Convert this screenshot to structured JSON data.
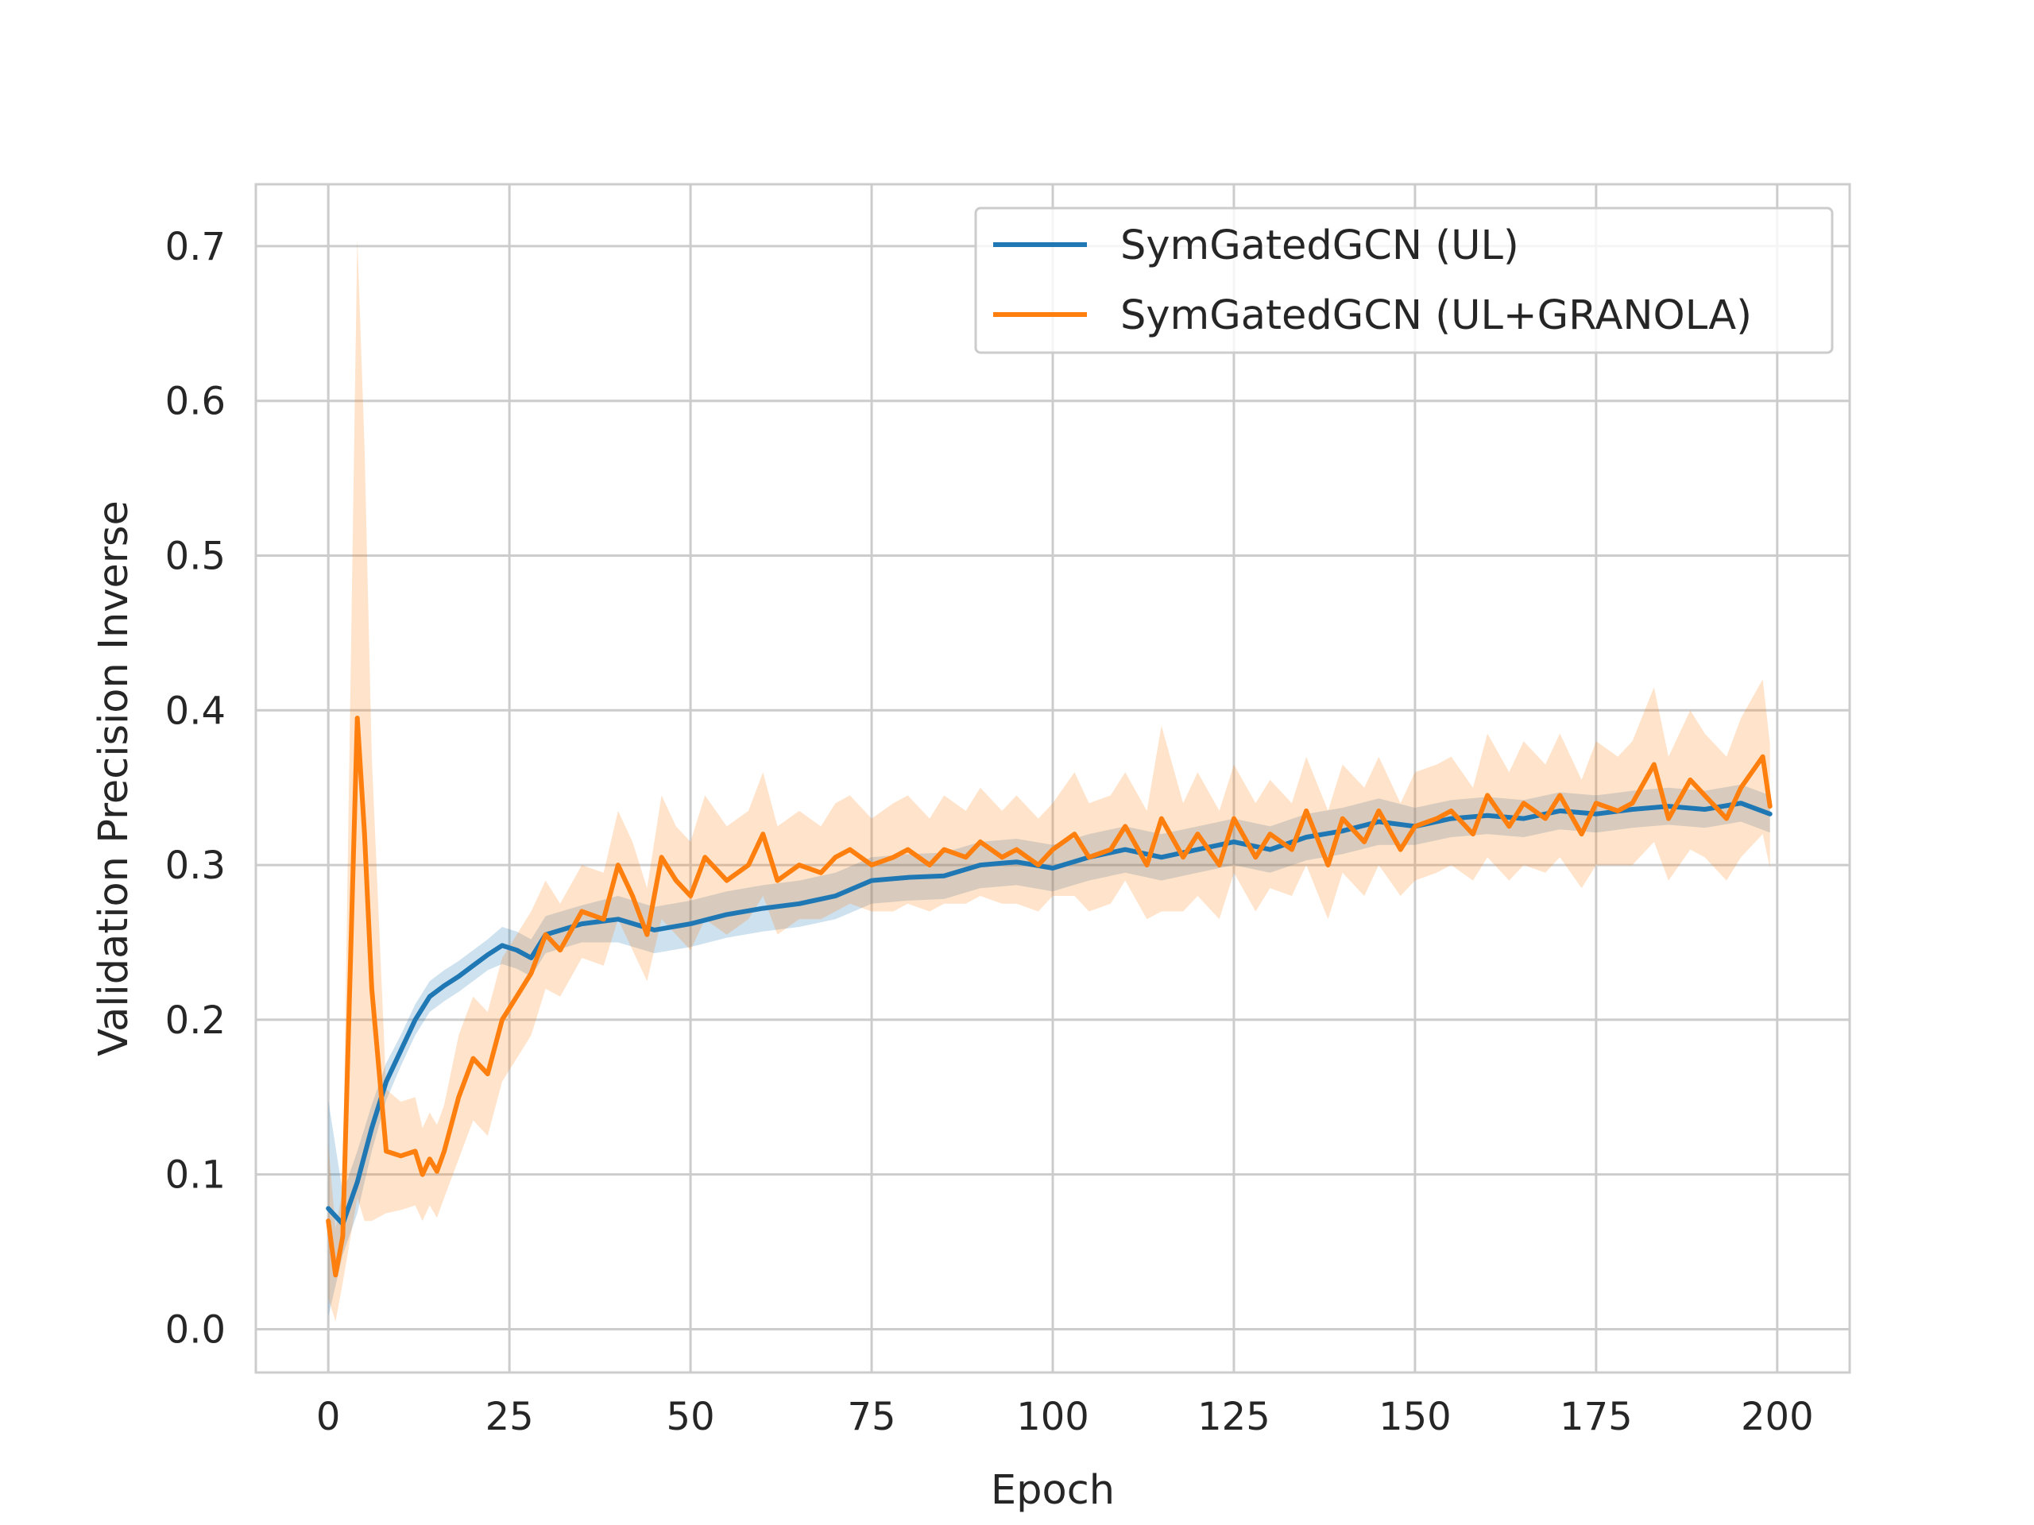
{
  "chart_data": {
    "type": "line",
    "xlabel": "Epoch",
    "ylabel": "Validation Precision Inverse",
    "xlim": [
      -10,
      210
    ],
    "ylim": [
      -0.028,
      0.74
    ],
    "xticks": [
      0,
      25,
      50,
      75,
      100,
      125,
      150,
      175,
      200
    ],
    "yticks": [
      0.0,
      0.1,
      0.2,
      0.3,
      0.4,
      0.5,
      0.6,
      0.7
    ],
    "xtick_labels": [
      "0",
      "25",
      "50",
      "75",
      "100",
      "125",
      "150",
      "175",
      "200"
    ],
    "ytick_labels": [
      "0.0",
      "0.1",
      "0.2",
      "0.3",
      "0.4",
      "0.5",
      "0.6",
      "0.7"
    ],
    "grid": true,
    "legend": "top-right",
    "series": [
      {
        "name": "SymGatedGCN (UL)",
        "color": "#1f77b4",
        "x": [
          0,
          2,
          4,
          6,
          8,
          10,
          12,
          14,
          16,
          18,
          20,
          22,
          24,
          26,
          28,
          30,
          35,
          40,
          45,
          50,
          55,
          60,
          65,
          70,
          75,
          80,
          85,
          90,
          95,
          100,
          105,
          110,
          115,
          120,
          125,
          130,
          135,
          140,
          145,
          150,
          155,
          160,
          165,
          170,
          175,
          180,
          185,
          190,
          195,
          199
        ],
        "values": [
          0.078,
          0.068,
          0.095,
          0.13,
          0.16,
          0.18,
          0.2,
          0.215,
          0.222,
          0.228,
          0.235,
          0.242,
          0.248,
          0.245,
          0.24,
          0.255,
          0.262,
          0.265,
          0.258,
          0.262,
          0.268,
          0.272,
          0.275,
          0.28,
          0.29,
          0.292,
          0.293,
          0.3,
          0.302,
          0.298,
          0.305,
          0.31,
          0.305,
          0.31,
          0.315,
          0.31,
          0.318,
          0.322,
          0.328,
          0.325,
          0.33,
          0.332,
          0.33,
          0.335,
          0.333,
          0.336,
          0.338,
          0.336,
          0.34,
          0.333
        ],
        "band_halfwidth": [
          0.07,
          0.02,
          0.02,
          0.015,
          0.012,
          0.01,
          0.01,
          0.01,
          0.01,
          0.01,
          0.01,
          0.01,
          0.012,
          0.012,
          0.012,
          0.012,
          0.012,
          0.015,
          0.015,
          0.015,
          0.015,
          0.015,
          0.015,
          0.015,
          0.015,
          0.015,
          0.015,
          0.015,
          0.015,
          0.015,
          0.015,
          0.015,
          0.015,
          0.015,
          0.015,
          0.015,
          0.015,
          0.015,
          0.015,
          0.012,
          0.012,
          0.012,
          0.012,
          0.012,
          0.012,
          0.012,
          0.012,
          0.012,
          0.012,
          0.012
        ]
      },
      {
        "name": "SymGatedGCN (UL+GRANOLA)",
        "color": "#ff7f0e",
        "x": [
          0,
          1,
          2,
          4,
          5,
          6,
          8,
          10,
          12,
          13,
          14,
          15,
          16,
          18,
          20,
          22,
          24,
          26,
          28,
          30,
          32,
          35,
          38,
          40,
          42,
          44,
          46,
          48,
          50,
          52,
          55,
          58,
          60,
          62,
          65,
          68,
          70,
          72,
          75,
          78,
          80,
          83,
          85,
          88,
          90,
          93,
          95,
          98,
          100,
          103,
          105,
          108,
          110,
          113,
          115,
          118,
          120,
          123,
          125,
          128,
          130,
          133,
          135,
          138,
          140,
          143,
          145,
          148,
          150,
          153,
          155,
          158,
          160,
          163,
          165,
          168,
          170,
          173,
          175,
          178,
          180,
          183,
          185,
          188,
          190,
          193,
          195,
          198,
          199
        ],
        "values": [
          0.07,
          0.035,
          0.06,
          0.395,
          0.32,
          0.22,
          0.115,
          0.112,
          0.115,
          0.1,
          0.11,
          0.102,
          0.115,
          0.15,
          0.175,
          0.165,
          0.2,
          0.215,
          0.23,
          0.255,
          0.245,
          0.27,
          0.265,
          0.3,
          0.28,
          0.255,
          0.305,
          0.29,
          0.28,
          0.305,
          0.29,
          0.3,
          0.32,
          0.29,
          0.3,
          0.295,
          0.305,
          0.31,
          0.3,
          0.305,
          0.31,
          0.3,
          0.31,
          0.305,
          0.315,
          0.305,
          0.31,
          0.3,
          0.31,
          0.32,
          0.305,
          0.31,
          0.325,
          0.3,
          0.33,
          0.305,
          0.32,
          0.3,
          0.33,
          0.305,
          0.32,
          0.31,
          0.335,
          0.3,
          0.33,
          0.315,
          0.335,
          0.31,
          0.325,
          0.33,
          0.335,
          0.32,
          0.345,
          0.325,
          0.34,
          0.33,
          0.345,
          0.32,
          0.34,
          0.335,
          0.34,
          0.365,
          0.33,
          0.355,
          0.345,
          0.33,
          0.35,
          0.37,
          0.338
        ],
        "band_halfwidth": [
          0.05,
          0.03,
          0.03,
          0.31,
          0.25,
          0.15,
          0.04,
          0.035,
          0.035,
          0.03,
          0.03,
          0.03,
          0.03,
          0.04,
          0.04,
          0.04,
          0.04,
          0.04,
          0.04,
          0.035,
          0.03,
          0.03,
          0.03,
          0.035,
          0.035,
          0.03,
          0.04,
          0.035,
          0.035,
          0.04,
          0.035,
          0.035,
          0.04,
          0.035,
          0.035,
          0.03,
          0.035,
          0.035,
          0.03,
          0.035,
          0.035,
          0.03,
          0.035,
          0.03,
          0.035,
          0.03,
          0.035,
          0.03,
          0.03,
          0.04,
          0.035,
          0.035,
          0.035,
          0.035,
          0.06,
          0.035,
          0.04,
          0.035,
          0.035,
          0.035,
          0.035,
          0.03,
          0.035,
          0.035,
          0.035,
          0.035,
          0.035,
          0.03,
          0.035,
          0.035,
          0.035,
          0.03,
          0.04,
          0.035,
          0.04,
          0.035,
          0.04,
          0.035,
          0.04,
          0.035,
          0.04,
          0.05,
          0.04,
          0.045,
          0.04,
          0.04,
          0.045,
          0.05,
          0.04
        ]
      }
    ]
  }
}
